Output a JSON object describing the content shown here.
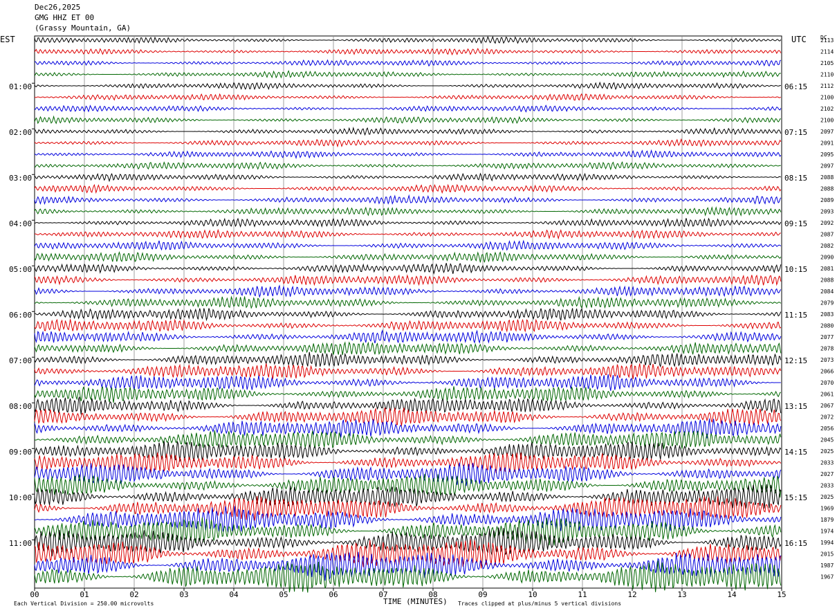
{
  "header": {
    "date": "Dec26,2025",
    "station": "GMG HHZ ET 00",
    "location": "(Grassy Mountain, GA)"
  },
  "left_axis_label": "EST",
  "right_axis_label": "UTC",
  "dc_label": "DC",
  "footer": {
    "scale": "Each Vertical Division =  250.00 microvolts",
    "xlabel": "TIME (MINUTES)",
    "clip_note": "Traces clipped at plus/minus 5 vertical divisions"
  },
  "chart_data": {
    "type": "line",
    "title": "",
    "xlabel": "TIME (MINUTES)",
    "ylabel": "",
    "xlim": [
      0,
      15
    ],
    "x_ticks": [
      "00",
      "01",
      "02",
      "03",
      "04",
      "05",
      "06",
      "07",
      "08",
      "09",
      "10",
      "11",
      "12",
      "13",
      "14",
      "15"
    ],
    "grid": "vertical lines at each minute",
    "trace_colors": [
      "#000000",
      "#dd0000",
      "#0000dd",
      "#006600"
    ],
    "est_hour_labels": [
      "01:00",
      "02:00",
      "03:00",
      "04:00",
      "05:00",
      "06:00",
      "07:00",
      "08:00",
      "09:00",
      "10:00",
      "11:00"
    ],
    "utc_hour_labels": [
      "06:15",
      "07:15",
      "08:15",
      "09:15",
      "10:15",
      "11:15",
      "12:15",
      "13:15",
      "14:15",
      "15:15",
      "16:15"
    ],
    "dc_offsets": [
      "2113",
      "2114",
      "2105",
      "2110",
      "2112",
      "2100",
      "2102",
      "2100",
      "2097",
      "2091",
      "2095",
      "2097",
      "2088",
      "2088",
      "2089",
      "2093",
      "2092",
      "2087",
      "2082",
      "2090",
      "2081",
      "2088",
      "2084",
      "2079",
      "2083",
      "2080",
      "2077",
      "2078",
      "2073",
      "2066",
      "2070",
      "2061",
      "2067",
      "2072",
      "2056",
      "2045",
      "2025",
      "2033",
      "2027",
      "2033",
      "2025",
      "1969",
      "1879",
      "1974",
      "1994",
      "2015",
      "1987",
      "1967"
    ],
    "amplitude_trend": "low early, increasing through 10:00-11:00 EST"
  }
}
